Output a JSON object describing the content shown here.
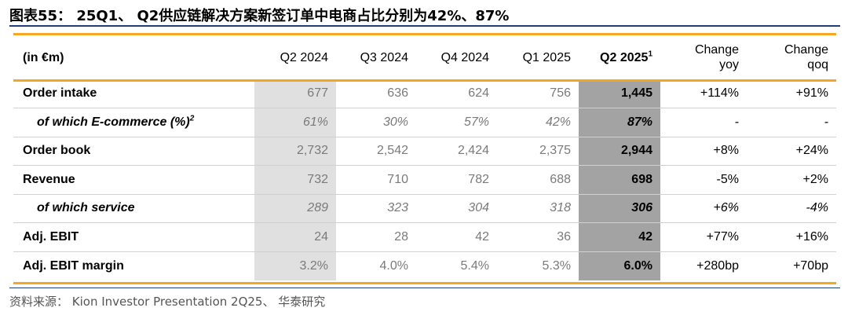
{
  "title": "图表55：  25Q1、 Q2供应链解决方案新签订单中电商占比分别为42%、87%",
  "columns": {
    "label": "(in €m)",
    "q2_2024": "Q2 2024",
    "q3_2024": "Q3 2024",
    "q4_2024": "Q4 2024",
    "q1_2025": "Q1 2025",
    "q2_2025": "Q2 2025",
    "q2_2025_note": "1",
    "yoy_line1": "Change",
    "yoy_line2": "yoy",
    "qoq_line1": "Change",
    "qoq_line2": "qoq"
  },
  "rows": [
    {
      "label": "Order intake",
      "note": "",
      "q2_2024": "677",
      "q3_2024": "636",
      "q4_2024": "624",
      "q1_2025": "756",
      "q2_2025": "1,445",
      "yoy": "+114%",
      "qoq": "+91%"
    },
    {
      "label": "of which E-commerce (%)",
      "note": "2",
      "q2_2024": "61%",
      "q3_2024": "30%",
      "q4_2024": "57%",
      "q1_2025": "42%",
      "q2_2025": "87%",
      "yoy": "-",
      "qoq": "-"
    },
    {
      "label": "Order book",
      "note": "",
      "q2_2024": "2,732",
      "q3_2024": "2,542",
      "q4_2024": "2,424",
      "q1_2025": "2,375",
      "q2_2025": "2,944",
      "yoy": "+8%",
      "qoq": "+24%"
    },
    {
      "label": "Revenue",
      "note": "",
      "q2_2024": "732",
      "q3_2024": "710",
      "q4_2024": "782",
      "q1_2025": "688",
      "q2_2025": "698",
      "yoy": "-5%",
      "qoq": "+2%"
    },
    {
      "label": "of which service",
      "note": "",
      "q2_2024": "289",
      "q3_2024": "323",
      "q4_2024": "304",
      "q1_2025": "318",
      "q2_2025": "306",
      "yoy": "+6%",
      "qoq": "-4%"
    },
    {
      "label": "Adj. EBIT",
      "note": "",
      "q2_2024": "24",
      "q3_2024": "28",
      "q4_2024": "42",
      "q1_2025": "36",
      "q2_2025": "42",
      "yoy": "+77%",
      "qoq": "+16%"
    },
    {
      "label": "Adj. EBIT margin",
      "note": "",
      "q2_2024": "3.2%",
      "q3_2024": "4.0%",
      "q4_2024": "5.4%",
      "q1_2025": "5.3%",
      "q2_2025": "6.0%",
      "yoy": "+280bp",
      "qoq": "+70bp"
    }
  ],
  "source": "资料来源： Kion Investor Presentation 2Q25、 华泰研究",
  "colors": {
    "accent_orange": "#f5a623",
    "rule_blue": "#1f3e7a",
    "highlight_dark": "#a3a3a3",
    "highlight_light": "#e0e0e0"
  }
}
